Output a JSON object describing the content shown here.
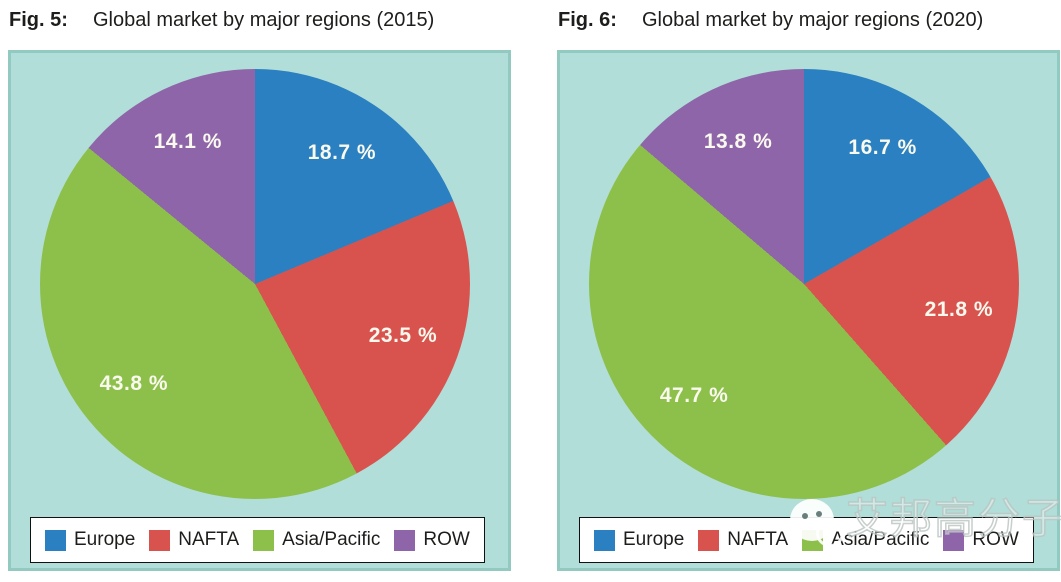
{
  "chart_data": [
    {
      "type": "pie",
      "fig_label": "Fig. 5:",
      "title": "Global market by major regions (2015)",
      "categories": [
        "Europe",
        "NAFTA",
        "Asia/Pacific",
        "ROW"
      ],
      "values": [
        18.7,
        23.5,
        43.8,
        14.1
      ],
      "labels": [
        "18.7 %",
        "23.5 %",
        "43.8 %",
        "14.1 %"
      ],
      "colors": [
        "#2a80c1",
        "#d9534e",
        "#8dc04b",
        "#8f65a9"
      ],
      "start_angle_deg": 0,
      "direction": "clockwise",
      "legend_position": "bottom",
      "panel_background": "#b2ded9"
    },
    {
      "type": "pie",
      "fig_label": "Fig. 6:",
      "title": "Global market by major regions (2020)",
      "categories": [
        "Europe",
        "NAFTA",
        "Asia/Pacific",
        "ROW"
      ],
      "values": [
        16.7,
        21.8,
        47.7,
        13.8
      ],
      "labels": [
        "16.7 %",
        "21.8 %",
        "47.7 %",
        "13.8 %"
      ],
      "colors": [
        "#2a80c1",
        "#d9534e",
        "#8dc04b",
        "#8f65a9"
      ],
      "start_angle_deg": 0,
      "direction": "clockwise",
      "legend_position": "bottom",
      "panel_background": "#b2ded9"
    }
  ],
  "watermark": {
    "text": "艾邦高分子",
    "icon": "wechat-icon"
  },
  "theme": {
    "panel_background": "#b2ded9",
    "panel_border": "#92cac2",
    "slice_label_color": "#faf9ee",
    "title_color": "#1d1d1b",
    "legend_background": "#ffffff",
    "legend_border": "#111111",
    "legend_text_color": "#1d1d1b"
  }
}
